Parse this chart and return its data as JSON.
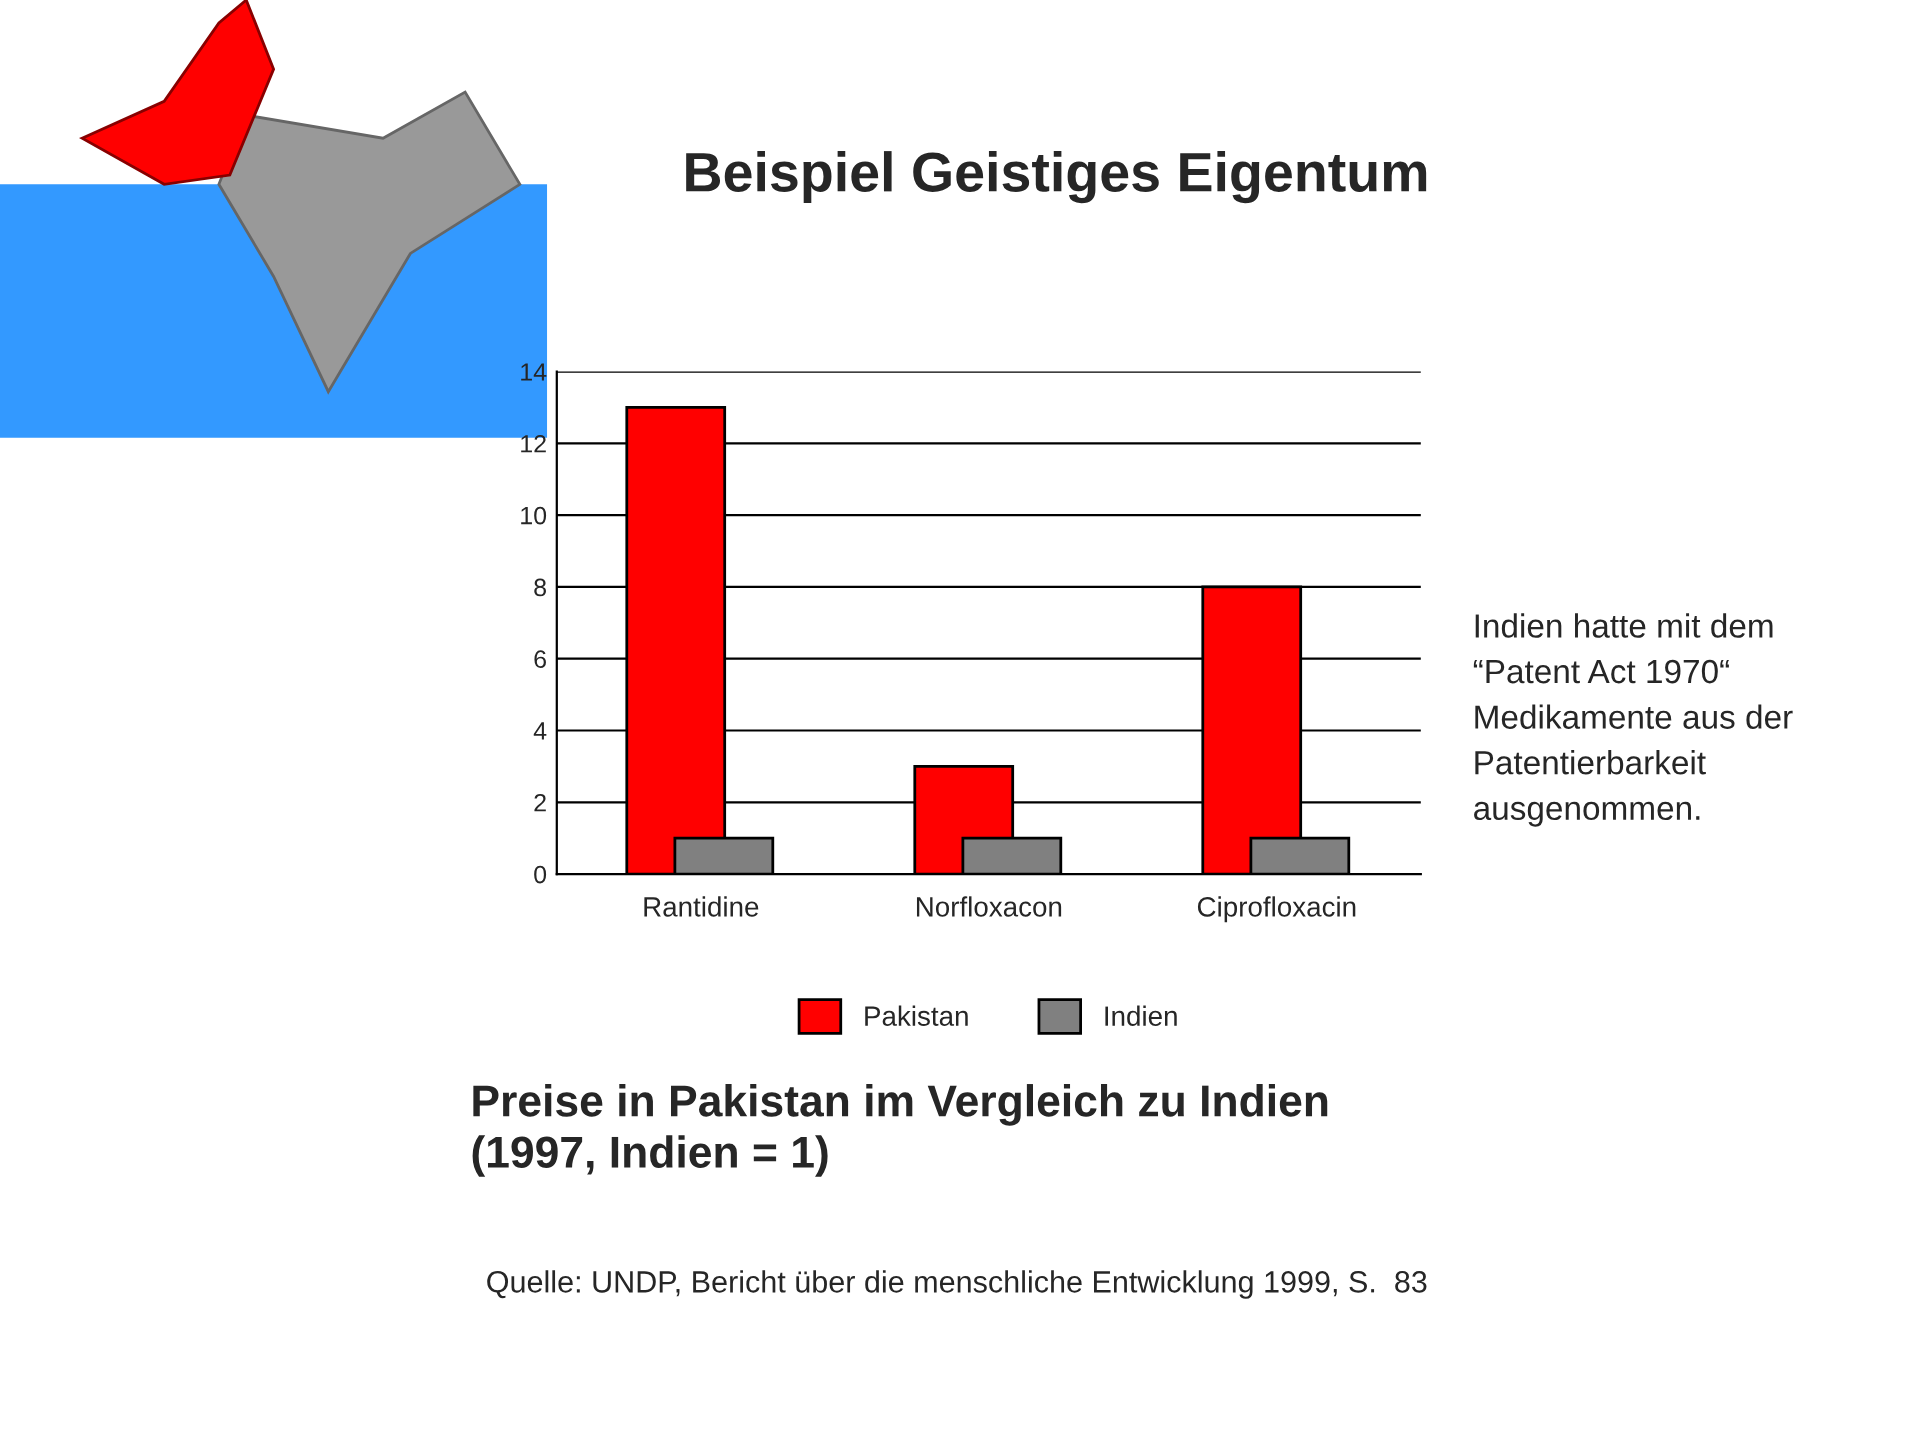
{
  "chart_data": {
    "type": "bar",
    "title": "Beispiel Geistiges Eigentum",
    "subtitle": "Preise in Pakistan im Vergleich zu Indien\n(1997, Indien = 1)",
    "categories": [
      "Rantidine",
      "Norfloxacon",
      "Ciprofloxacin"
    ],
    "series": [
      {
        "name": "Pakistan",
        "color": "#ff0000",
        "values": [
          13,
          3,
          8
        ]
      },
      {
        "name": "Indien",
        "color": "#808080",
        "values": [
          1,
          1,
          1
        ]
      }
    ],
    "ylim": [
      0,
      14
    ],
    "yticks": [
      0,
      2,
      4,
      6,
      8,
      10,
      12,
      14
    ],
    "grid": "y",
    "legend": "bottom",
    "annotations": [
      "Indien hatte mit dem\n“Patent Act 1970“\nMedikamente aus der\nPatentierbarkeit\nausgenommen.",
      "Quelle: UNDP, Bericht über die menschliche Entwicklung 1999, S.  83"
    ]
  }
}
